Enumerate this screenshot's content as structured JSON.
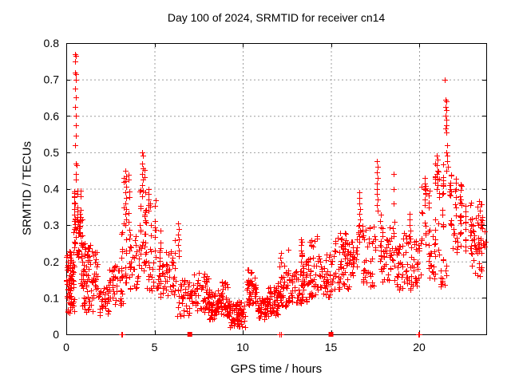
{
  "chart_data": {
    "type": "scatter",
    "title": "Day 100 of 2024, SRMTID for receiver cn14",
    "xlabel": "GPS time / hours",
    "ylabel": "SRMTID / TECUs",
    "xlim": [
      0,
      23.8
    ],
    "ylim": [
      0,
      0.8
    ],
    "xticks": [
      0,
      5,
      10,
      15,
      20
    ],
    "xtick_labels": [
      "0",
      "5",
      "10",
      "15",
      "20"
    ],
    "yticks": [
      0,
      0.1,
      0.2,
      0.3,
      0.4,
      0.5,
      0.6,
      0.7,
      0.8
    ],
    "ytick_labels": [
      "0",
      "0.1",
      "0.2",
      "0.3",
      "0.4",
      "0.5",
      "0.6",
      "0.7",
      "0.8"
    ],
    "grid": {
      "show": true,
      "style": "dotted",
      "color": "#9e9e9e"
    },
    "legend": "none",
    "series_name": "SRMTID",
    "marker": {
      "shape": "plus",
      "size": 7,
      "color": "#ff0000"
    },
    "notable_points_format": "[gps_hour, tecu] - individually readable extreme points",
    "notable_points": [
      [
        0.5,
        0.77
      ],
      [
        0.55,
        0.765
      ],
      [
        0.5,
        0.75
      ],
      [
        0.52,
        0.72
      ],
      [
        0.56,
        0.715
      ],
      [
        0.53,
        0.7
      ],
      [
        0.52,
        0.675
      ],
      [
        0.54,
        0.65
      ],
      [
        0.52,
        0.625
      ],
      [
        0.55,
        0.6
      ],
      [
        0.53,
        0.575
      ],
      [
        0.55,
        0.545
      ],
      [
        0.52,
        0.52
      ],
      [
        0.54,
        0.47
      ],
      [
        0.57,
        0.465
      ],
      [
        0.55,
        0.44
      ],
      [
        0.53,
        0.425
      ],
      [
        3.35,
        0.45
      ],
      [
        3.38,
        0.435
      ],
      [
        3.35,
        0.42
      ],
      [
        3.4,
        0.405
      ],
      [
        3.36,
        0.39
      ],
      [
        3.39,
        0.375
      ],
      [
        3.35,
        0.36
      ],
      [
        3.41,
        0.345
      ],
      [
        3.37,
        0.33
      ],
      [
        3.4,
        0.315
      ],
      [
        3.36,
        0.3
      ],
      [
        4.3,
        0.5
      ],
      [
        4.33,
        0.49
      ],
      [
        4.3,
        0.47
      ],
      [
        4.35,
        0.455
      ],
      [
        4.31,
        0.44
      ],
      [
        4.33,
        0.425
      ],
      [
        4.3,
        0.41
      ],
      [
        4.34,
        0.395
      ],
      [
        4.31,
        0.38
      ],
      [
        4.65,
        0.4
      ],
      [
        4.67,
        0.385
      ],
      [
        4.65,
        0.37
      ],
      [
        4.68,
        0.355
      ],
      [
        4.65,
        0.34
      ],
      [
        6.35,
        0.305
      ],
      [
        6.37,
        0.29
      ],
      [
        6.35,
        0.275
      ],
      [
        6.38,
        0.26
      ],
      [
        6.35,
        0.245
      ],
      [
        6.36,
        0.23
      ],
      [
        6.38,
        0.215
      ],
      [
        13.3,
        0.26
      ],
      [
        13.32,
        0.245
      ],
      [
        13.3,
        0.23
      ],
      [
        13.33,
        0.215
      ],
      [
        13.3,
        0.2
      ],
      [
        16.6,
        0.39
      ],
      [
        16.62,
        0.375
      ],
      [
        16.6,
        0.36
      ],
      [
        16.65,
        0.345
      ],
      [
        16.6,
        0.33
      ],
      [
        16.63,
        0.315
      ],
      [
        16.6,
        0.3
      ],
      [
        16.64,
        0.285
      ],
      [
        16.6,
        0.27
      ],
      [
        16.62,
        0.255
      ],
      [
        17.6,
        0.475
      ],
      [
        17.63,
        0.46
      ],
      [
        17.6,
        0.445
      ],
      [
        17.65,
        0.43
      ],
      [
        17.6,
        0.415
      ],
      [
        17.62,
        0.4
      ],
      [
        17.6,
        0.385
      ],
      [
        17.64,
        0.37
      ],
      [
        17.6,
        0.355
      ],
      [
        17.63,
        0.34
      ],
      [
        18.55,
        0.44
      ],
      [
        18.57,
        0.4
      ],
      [
        18.55,
        0.36
      ],
      [
        18.58,
        0.31
      ],
      [
        19.45,
        0.33
      ],
      [
        19.47,
        0.315
      ],
      [
        19.45,
        0.3
      ],
      [
        19.48,
        0.285
      ],
      [
        19.45,
        0.27
      ],
      [
        19.46,
        0.255
      ],
      [
        20.3,
        0.43
      ],
      [
        20.33,
        0.415
      ],
      [
        20.3,
        0.4
      ],
      [
        20.35,
        0.385
      ],
      [
        20.31,
        0.37
      ],
      [
        20.33,
        0.355
      ],
      [
        21.0,
        0.49
      ],
      [
        21.03,
        0.48
      ],
      [
        21.0,
        0.465
      ],
      [
        21.05,
        0.45
      ],
      [
        21.0,
        0.44
      ],
      [
        21.02,
        0.425
      ],
      [
        21.06,
        0.41
      ],
      [
        21.0,
        0.4
      ],
      [
        21.45,
        0.7
      ],
      [
        21.5,
        0.645
      ],
      [
        21.53,
        0.64
      ],
      [
        21.5,
        0.625
      ],
      [
        21.55,
        0.615
      ],
      [
        21.5,
        0.6
      ],
      [
        21.52,
        0.59
      ],
      [
        21.56,
        0.575
      ],
      [
        21.5,
        0.565
      ],
      [
        21.54,
        0.555
      ],
      [
        21.6,
        0.52
      ],
      [
        21.55,
        0.5
      ],
      [
        21.6,
        0.49
      ],
      [
        21.57,
        0.475
      ],
      [
        21.62,
        0.46
      ],
      [
        21.55,
        0.45
      ]
    ],
    "clusters_format": "[x_start_hour, x_end_hour, y_min_tecu, y_max_tecu, point_count, streak_columns(optional)] - dense bands estimated from plot",
    "clusters": [
      [
        0.0,
        0.45,
        0.1,
        0.23,
        55
      ],
      [
        0.05,
        0.5,
        0.05,
        0.11,
        22
      ],
      [
        0.45,
        0.8,
        0.31,
        0.42,
        26,
        3
      ],
      [
        0.4,
        0.9,
        0.21,
        0.32,
        40
      ],
      [
        0.8,
        1.8,
        0.1,
        0.25,
        75
      ],
      [
        0.9,
        1.6,
        0.06,
        0.1,
        14
      ],
      [
        1.8,
        2.5,
        0.05,
        0.13,
        35
      ],
      [
        2.4,
        3.2,
        0.08,
        0.19,
        45
      ],
      [
        3.25,
        3.55,
        0.3,
        0.44,
        10,
        2
      ],
      [
        3.15,
        3.6,
        0.14,
        0.3,
        24,
        3
      ],
      [
        3.6,
        4.15,
        0.12,
        0.27,
        30
      ],
      [
        4.2,
        4.45,
        0.28,
        0.46,
        14,
        2
      ],
      [
        4.15,
        4.5,
        0.17,
        0.28,
        14
      ],
      [
        4.5,
        5.3,
        0.2,
        0.37,
        30,
        4
      ],
      [
        4.5,
        5.3,
        0.12,
        0.2,
        24
      ],
      [
        5.3,
        6.25,
        0.1,
        0.22,
        42
      ],
      [
        5.6,
        6.2,
        0.22,
        0.27,
        5
      ],
      [
        6.3,
        7.2,
        0.05,
        0.15,
        48
      ],
      [
        7.2,
        8.1,
        0.06,
        0.17,
        58
      ],
      [
        8.1,
        8.6,
        0.04,
        0.12,
        42
      ],
      [
        8.6,
        9.25,
        0.05,
        0.15,
        48
      ],
      [
        9.25,
        10.15,
        0.02,
        0.09,
        68
      ],
      [
        10.2,
        10.8,
        0.08,
        0.18,
        52
      ],
      [
        10.8,
        11.45,
        0.04,
        0.1,
        48
      ],
      [
        11.45,
        12.0,
        0.05,
        0.13,
        42
      ],
      [
        12.0,
        12.65,
        0.07,
        0.17,
        42
      ],
      [
        12.1,
        12.6,
        0.17,
        0.24,
        8
      ],
      [
        12.65,
        13.4,
        0.08,
        0.18,
        48
      ],
      [
        13.15,
        13.45,
        0.18,
        0.26,
        6
      ],
      [
        13.4,
        14.3,
        0.09,
        0.21,
        52
      ],
      [
        13.8,
        14.2,
        0.2,
        0.27,
        8
      ],
      [
        14.3,
        15.2,
        0.1,
        0.22,
        52
      ],
      [
        15.2,
        16.0,
        0.12,
        0.27,
        52
      ],
      [
        15.4,
        15.9,
        0.24,
        0.3,
        6
      ],
      [
        16.0,
        16.5,
        0.15,
        0.28,
        28
      ],
      [
        16.55,
        16.8,
        0.25,
        0.32,
        6,
        2
      ],
      [
        16.8,
        17.45,
        0.13,
        0.3,
        34
      ],
      [
        17.5,
        17.8,
        0.2,
        0.33,
        10,
        2
      ],
      [
        17.8,
        18.6,
        0.14,
        0.3,
        45
      ],
      [
        18.6,
        19.6,
        0.12,
        0.28,
        56
      ],
      [
        19.6,
        20.1,
        0.13,
        0.26,
        25
      ],
      [
        20.15,
        20.55,
        0.24,
        0.41,
        22,
        3
      ],
      [
        20.55,
        20.9,
        0.15,
        0.28,
        18
      ],
      [
        20.9,
        21.35,
        0.2,
        0.47,
        28,
        3
      ],
      [
        21.35,
        21.75,
        0.37,
        0.44,
        12,
        2
      ],
      [
        21.2,
        21.55,
        0.13,
        0.19,
        12
      ],
      [
        21.8,
        22.35,
        0.3,
        0.45,
        24,
        3
      ],
      [
        21.9,
        22.35,
        0.22,
        0.3,
        10
      ],
      [
        22.35,
        22.9,
        0.23,
        0.38,
        28,
        3
      ],
      [
        22.9,
        23.6,
        0.22,
        0.33,
        44
      ],
      [
        23.0,
        23.55,
        0.16,
        0.22,
        10
      ],
      [
        23.25,
        23.55,
        0.33,
        0.375,
        5
      ],
      [
        23.6,
        23.8,
        0.24,
        0.3,
        6
      ]
    ],
    "axis_points_note": "data points lying on the y=0 baseline",
    "axis_points": [
      {
        "x": 3.1,
        "y": 0,
        "glyph": "plus"
      },
      {
        "x": 3.17,
        "y": 0,
        "glyph": "plus"
      },
      {
        "x": 7.0,
        "y": 0,
        "glyph": "square"
      },
      {
        "x": 12.1,
        "y": 0,
        "glyph": "plus"
      },
      {
        "x": 12.17,
        "y": 0,
        "glyph": "plus"
      },
      {
        "x": 15.0,
        "y": 0,
        "glyph": "square"
      },
      {
        "x": 19.95,
        "y": 0,
        "glyph": "plus"
      },
      {
        "x": 20.02,
        "y": 0,
        "glyph": "plus"
      }
    ]
  }
}
